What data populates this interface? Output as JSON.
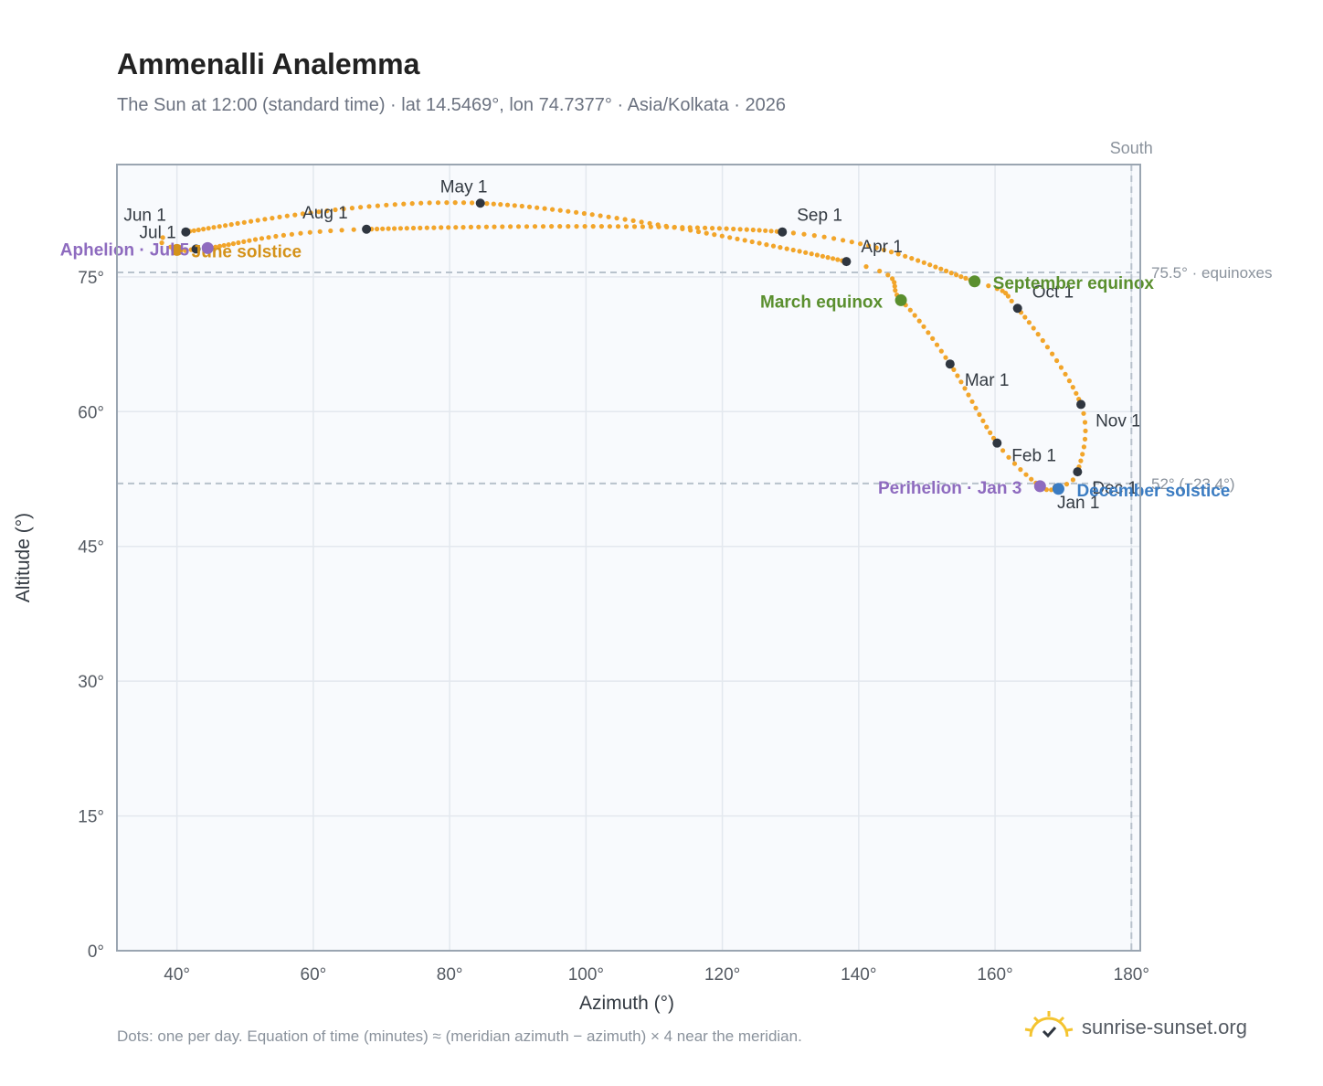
{
  "header": {
    "title": "Ammenalli Analemma",
    "subtitle": "The Sun at 12:00 (standard time) · lat 14.5469°, lon 74.7377° · Asia/Kolkata · 2026"
  },
  "footer": {
    "note": "Dots: one per day. Equation of time (minutes) ≈ (meridian azimuth − azimuth) × 4 near the meridian.",
    "brand": "sunrise-sunset.org"
  },
  "colors": {
    "curve": "#f2a52a",
    "month_marker": "#2f3640",
    "equinox": "#5a8f2e",
    "december_solstice": "#3b7cc2",
    "june_solstice": "#d4921a",
    "apsis": "#8e6bbf",
    "plot_bg": "#f8fafd",
    "grid": "#e3e8ee",
    "reference_line": "#b8c2cc"
  },
  "chart_data": {
    "type": "scatter",
    "xlabel": "Azimuth (°)",
    "ylabel": "Altitude (°)",
    "xlim": [
      31.2,
      181.3
    ],
    "ylim": [
      0,
      87.5
    ],
    "xticks": [
      40,
      60,
      80,
      100,
      120,
      140,
      160,
      180
    ],
    "yticks": [
      0,
      15,
      30,
      45,
      60,
      75
    ],
    "grid": true,
    "south_label": "South",
    "south_azimuth": 180,
    "reference_lines": [
      {
        "altitude": 75.5,
        "label": "75.5° · equinoxes"
      },
      {
        "altitude": 52.0,
        "label": "52° (−23.4°)"
      }
    ],
    "daily_path_note": "one dot per day",
    "daily_path_keypoints": [
      {
        "date": "Jan 1",
        "az": 169.1,
        "alt": 51.5
      },
      {
        "date": "Jan 3",
        "az": 166.6,
        "alt": 51.7
      },
      {
        "date": "Feb 1",
        "az": 160.3,
        "alt": 56.5
      },
      {
        "date": "Mar 1",
        "az": 153.4,
        "alt": 65.3
      },
      {
        "date": "Mar 20",
        "az": 146.2,
        "alt": 72.4
      },
      {
        "date": "Apr 1",
        "az": 138.2,
        "alt": 76.7
      },
      {
        "date": "May 1",
        "az": 84.5,
        "alt": 83.2
      },
      {
        "date": "Jun 1",
        "az": 41.3,
        "alt": 80.0
      },
      {
        "date": "Jun 21",
        "az": 40.0,
        "alt": 78.0
      },
      {
        "date": "Jul 1",
        "az": 42.8,
        "alt": 78.1
      },
      {
        "date": "Jul 5",
        "az": 44.5,
        "alt": 78.2
      },
      {
        "date": "Aug 1",
        "az": 67.8,
        "alt": 80.3
      },
      {
        "date": "Sep 1",
        "az": 128.8,
        "alt": 80.0
      },
      {
        "date": "Sep 23",
        "az": 157.0,
        "alt": 74.5
      },
      {
        "date": "Oct 1",
        "az": 163.3,
        "alt": 71.5
      },
      {
        "date": "Nov 1",
        "az": 172.6,
        "alt": 60.8
      },
      {
        "date": "Dec 1",
        "az": 172.1,
        "alt": 53.3
      },
      {
        "date": "Dec 21",
        "az": 169.0,
        "alt": 51.5
      }
    ],
    "month_markers": [
      {
        "label": "Jan 1",
        "az": 169.1,
        "alt": 51.5
      },
      {
        "label": "Feb 1",
        "az": 160.3,
        "alt": 56.5
      },
      {
        "label": "Mar 1",
        "az": 153.4,
        "alt": 65.3
      },
      {
        "label": "Apr 1",
        "az": 138.2,
        "alt": 76.7
      },
      {
        "label": "May 1",
        "az": 84.5,
        "alt": 83.2
      },
      {
        "label": "Jun 1",
        "az": 41.3,
        "alt": 80.0
      },
      {
        "label": "Jul 1",
        "az": 42.8,
        "alt": 78.1
      },
      {
        "label": "Aug 1",
        "az": 67.8,
        "alt": 80.3
      },
      {
        "label": "Sep 1",
        "az": 128.8,
        "alt": 80.0
      },
      {
        "label": "Oct 1",
        "az": 163.3,
        "alt": 71.5
      },
      {
        "label": "Nov 1",
        "az": 172.6,
        "alt": 60.8
      },
      {
        "label": "Dec 1",
        "az": 172.1,
        "alt": 53.3
      }
    ],
    "events": [
      {
        "label": "March equinox",
        "az": 146.2,
        "alt": 72.4,
        "kind": "equinox"
      },
      {
        "label": "September equinox",
        "az": 157.0,
        "alt": 74.5,
        "kind": "equinox"
      },
      {
        "label": "December solstice",
        "az": 169.3,
        "alt": 51.4,
        "kind": "december_solstice"
      },
      {
        "label": "June solstice",
        "az": 40.0,
        "alt": 78.0,
        "kind": "june_solstice"
      },
      {
        "label": "Perihelion · Jan 3",
        "az": 166.6,
        "alt": 51.7,
        "kind": "apsis"
      },
      {
        "label": "Aphelion · Jul 5",
        "az": 44.5,
        "alt": 78.2,
        "kind": "apsis"
      }
    ]
  }
}
